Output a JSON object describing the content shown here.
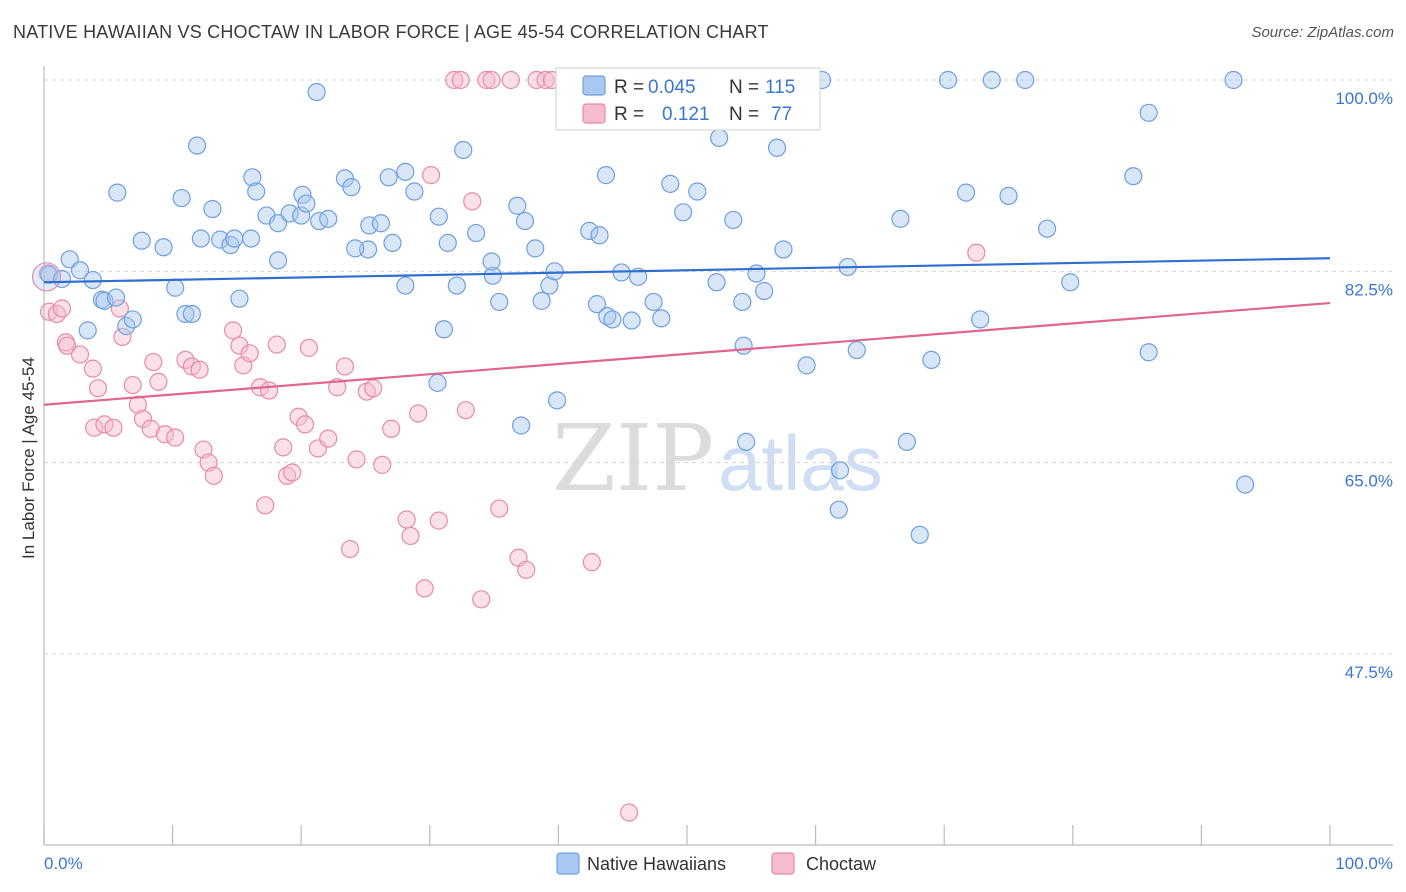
{
  "title": "NATIVE HAWAIIAN VS CHOCTAW IN LABOR FORCE | AGE 45-54 CORRELATION CHART",
  "source": "Source: ZipAtlas.com",
  "watermark": {
    "zip": "ZIP",
    "atlas": "atlas"
  },
  "colors": {
    "blue_fill": "#a9c8f0",
    "blue_stroke": "#6f9fe0",
    "blue_line": "#2f6fd0",
    "pink_fill": "#f5bccd",
    "pink_stroke": "#e88aa8",
    "pink_line": "#e0658f",
    "tick_label": "#3b76d0",
    "grid": "#d5d5d5"
  },
  "legend": {
    "r_label": "R =",
    "n_label": "N =",
    "rows": [
      {
        "r": "0.045",
        "n": "115"
      },
      {
        "r": "0.121",
        "n": "77"
      }
    ]
  },
  "bottom_legend": [
    "Native Hawaiians",
    "Choctaw"
  ],
  "chart_data": {
    "type": "scatter",
    "title": "NATIVE HAWAIIAN VS CHOCTAW IN LABOR FORCE | AGE 45-54 CORRELATION CHART",
    "xlabel": "",
    "ylabel": "In Labor Force | Age 45-54",
    "xlim": [
      0,
      100
    ],
    "ylim": [
      30,
      102
    ],
    "x_tick_labels": [
      "0.0%",
      "100.0%"
    ],
    "y_ticks": [
      47.5,
      65.0,
      82.5,
      100.0
    ],
    "y_tick_labels": [
      "47.5%",
      "65.0%",
      "82.5%",
      "100.0%"
    ],
    "grid": true,
    "legend_position": "top-center",
    "series": [
      {
        "name": "Native Hawaiians",
        "r": 0.045,
        "n": 115,
        "trend": {
          "x": [
            0,
            100
          ],
          "y": [
            81.5,
            83.7
          ]
        },
        "points": [
          [
            0.4,
            82.2
          ],
          [
            1.4,
            81.8
          ],
          [
            2.0,
            83.6
          ],
          [
            2.8,
            82.6
          ],
          [
            3.8,
            81.7
          ],
          [
            4.5,
            79.9
          ],
          [
            4.7,
            79.8
          ],
          [
            5.6,
            80.1
          ],
          [
            3.4,
            77.1
          ],
          [
            6.4,
            77.5
          ],
          [
            6.9,
            78.1
          ],
          [
            5.7,
            89.7
          ],
          [
            7.6,
            85.3
          ],
          [
            9.3,
            84.7
          ],
          [
            10.2,
            81.0
          ],
          [
            11.0,
            78.6
          ],
          [
            10.7,
            89.2
          ],
          [
            11.5,
            78.6
          ],
          [
            12.2,
            85.5
          ],
          [
            13.1,
            88.2
          ],
          [
            11.9,
            94.0
          ],
          [
            13.7,
            85.4
          ],
          [
            14.5,
            84.9
          ],
          [
            14.8,
            85.5
          ],
          [
            15.2,
            80.0
          ],
          [
            16.1,
            85.5
          ],
          [
            16.2,
            91.1
          ],
          [
            16.5,
            89.8
          ],
          [
            17.3,
            87.6
          ],
          [
            18.2,
            86.9
          ],
          [
            18.2,
            83.5
          ],
          [
            19.1,
            87.8
          ],
          [
            20.0,
            87.6
          ],
          [
            20.1,
            89.5
          ],
          [
            20.4,
            88.7
          ],
          [
            21.4,
            87.1
          ],
          [
            21.2,
            98.9
          ],
          [
            22.1,
            87.3
          ],
          [
            23.4,
            91.0
          ],
          [
            23.9,
            90.2
          ],
          [
            25.2,
            84.5
          ],
          [
            25.3,
            86.7
          ],
          [
            26.2,
            86.9
          ],
          [
            24.2,
            84.6
          ],
          [
            26.8,
            91.1
          ],
          [
            27.1,
            85.1
          ],
          [
            28.1,
            81.2
          ],
          [
            28.1,
            91.6
          ],
          [
            28.8,
            89.8
          ],
          [
            31.1,
            77.2
          ],
          [
            30.7,
            87.5
          ],
          [
            31.4,
            85.1
          ],
          [
            32.6,
            93.6
          ],
          [
            30.6,
            72.3
          ],
          [
            32.1,
            81.2
          ],
          [
            33.6,
            86.0
          ],
          [
            34.9,
            82.1
          ],
          [
            35.4,
            79.7
          ],
          [
            34.8,
            83.4
          ],
          [
            36.8,
            88.5
          ],
          [
            37.4,
            87.1
          ],
          [
            37.1,
            68.4
          ],
          [
            38.2,
            84.6
          ],
          [
            39.3,
            81.2
          ],
          [
            38.7,
            79.8
          ],
          [
            39.7,
            82.5
          ],
          [
            39.9,
            70.7
          ],
          [
            42.4,
            86.2
          ],
          [
            43.0,
            79.5
          ],
          [
            43.2,
            85.8
          ],
          [
            43.8,
            78.4
          ],
          [
            43.7,
            91.3
          ],
          [
            44.2,
            78.1
          ],
          [
            44.9,
            82.4
          ],
          [
            45.7,
            78.0
          ],
          [
            46.2,
            82.0
          ],
          [
            47.4,
            79.7
          ],
          [
            48.0,
            78.2
          ],
          [
            48.7,
            90.5
          ],
          [
            49.7,
            87.9
          ],
          [
            51.0,
            100.0
          ],
          [
            50.8,
            89.8
          ],
          [
            52.5,
            94.7
          ],
          [
            52.3,
            81.5
          ],
          [
            53.6,
            87.2
          ],
          [
            54.3,
            79.7
          ],
          [
            54.4,
            75.7
          ],
          [
            54.6,
            66.9
          ],
          [
            55.4,
            82.3
          ],
          [
            56.0,
            80.7
          ],
          [
            57.0,
            93.8
          ],
          [
            57.5,
            84.5
          ],
          [
            59.3,
            73.9
          ],
          [
            60.5,
            100.0
          ],
          [
            61.8,
            60.7
          ],
          [
            61.9,
            64.3
          ],
          [
            62.5,
            82.9
          ],
          [
            63.2,
            75.3
          ],
          [
            66.6,
            87.3
          ],
          [
            67.1,
            66.9
          ],
          [
            68.1,
            58.4
          ],
          [
            69.0,
            74.4
          ],
          [
            70.3,
            100.0
          ],
          [
            71.7,
            89.7
          ],
          [
            72.8,
            78.1
          ],
          [
            73.7,
            100.0
          ],
          [
            75.0,
            89.4
          ],
          [
            76.3,
            100.0
          ],
          [
            78.0,
            86.4
          ],
          [
            79.8,
            81.5
          ],
          [
            85.9,
            75.1
          ],
          [
            84.7,
            91.2
          ],
          [
            85.9,
            97.0
          ],
          [
            92.5,
            100.0
          ],
          [
            93.4,
            63.0
          ]
        ]
      },
      {
        "name": "Choctaw",
        "r": 0.121,
        "n": 77,
        "trend": {
          "x": [
            0,
            100
          ],
          "y": [
            70.3,
            79.6
          ]
        },
        "points": [
          [
            0.3,
            82.3
          ],
          [
            0.4,
            78.8
          ],
          [
            1.0,
            78.6
          ],
          [
            1.4,
            79.1
          ],
          [
            1.7,
            76.0
          ],
          [
            1.8,
            75.7
          ],
          [
            2.8,
            74.9
          ],
          [
            3.8,
            73.6
          ],
          [
            3.9,
            68.2
          ],
          [
            4.2,
            71.8
          ],
          [
            4.7,
            68.5
          ],
          [
            5.4,
            68.2
          ],
          [
            5.9,
            79.1
          ],
          [
            6.1,
            76.5
          ],
          [
            6.9,
            72.1
          ],
          [
            7.3,
            70.3
          ],
          [
            7.7,
            69.0
          ],
          [
            8.3,
            68.1
          ],
          [
            8.5,
            74.2
          ],
          [
            8.9,
            72.4
          ],
          [
            9.4,
            67.6
          ],
          [
            10.2,
            67.3
          ],
          [
            11.0,
            74.4
          ],
          [
            11.5,
            73.8
          ],
          [
            12.1,
            73.5
          ],
          [
            12.4,
            66.2
          ],
          [
            12.8,
            65.0
          ],
          [
            13.2,
            63.8
          ],
          [
            14.7,
            77.1
          ],
          [
            15.2,
            75.7
          ],
          [
            15.5,
            73.9
          ],
          [
            16.0,
            75.0
          ],
          [
            16.8,
            71.9
          ],
          [
            17.2,
            61.1
          ],
          [
            17.5,
            71.6
          ],
          [
            18.1,
            75.8
          ],
          [
            18.6,
            66.4
          ],
          [
            18.9,
            63.8
          ],
          [
            19.3,
            64.1
          ],
          [
            19.8,
            69.2
          ],
          [
            20.3,
            68.5
          ],
          [
            20.6,
            75.5
          ],
          [
            21.3,
            66.3
          ],
          [
            22.1,
            67.2
          ],
          [
            22.8,
            71.9
          ],
          [
            23.4,
            73.8
          ],
          [
            23.8,
            57.1
          ],
          [
            24.3,
            65.3
          ],
          [
            25.1,
            71.5
          ],
          [
            25.6,
            71.8
          ],
          [
            26.3,
            64.8
          ],
          [
            27.0,
            68.1
          ],
          [
            28.2,
            59.8
          ],
          [
            28.5,
            58.3
          ],
          [
            29.1,
            69.5
          ],
          [
            29.6,
            53.5
          ],
          [
            30.1,
            91.3
          ],
          [
            30.7,
            59.7
          ],
          [
            31.9,
            100.0
          ],
          [
            32.4,
            100.0
          ],
          [
            32.8,
            69.8
          ],
          [
            33.3,
            88.9
          ],
          [
            34.0,
            52.5
          ],
          [
            34.4,
            100.0
          ],
          [
            34.8,
            100.0
          ],
          [
            35.4,
            60.8
          ],
          [
            36.3,
            100.0
          ],
          [
            36.9,
            56.3
          ],
          [
            37.5,
            55.2
          ],
          [
            38.3,
            100.0
          ],
          [
            39.0,
            100.0
          ],
          [
            39.5,
            100.0
          ],
          [
            42.6,
            55.9
          ],
          [
            44.2,
            100.0
          ],
          [
            45.5,
            33.0
          ],
          [
            46.8,
            100.0
          ],
          [
            72.5,
            84.2
          ]
        ]
      }
    ]
  }
}
